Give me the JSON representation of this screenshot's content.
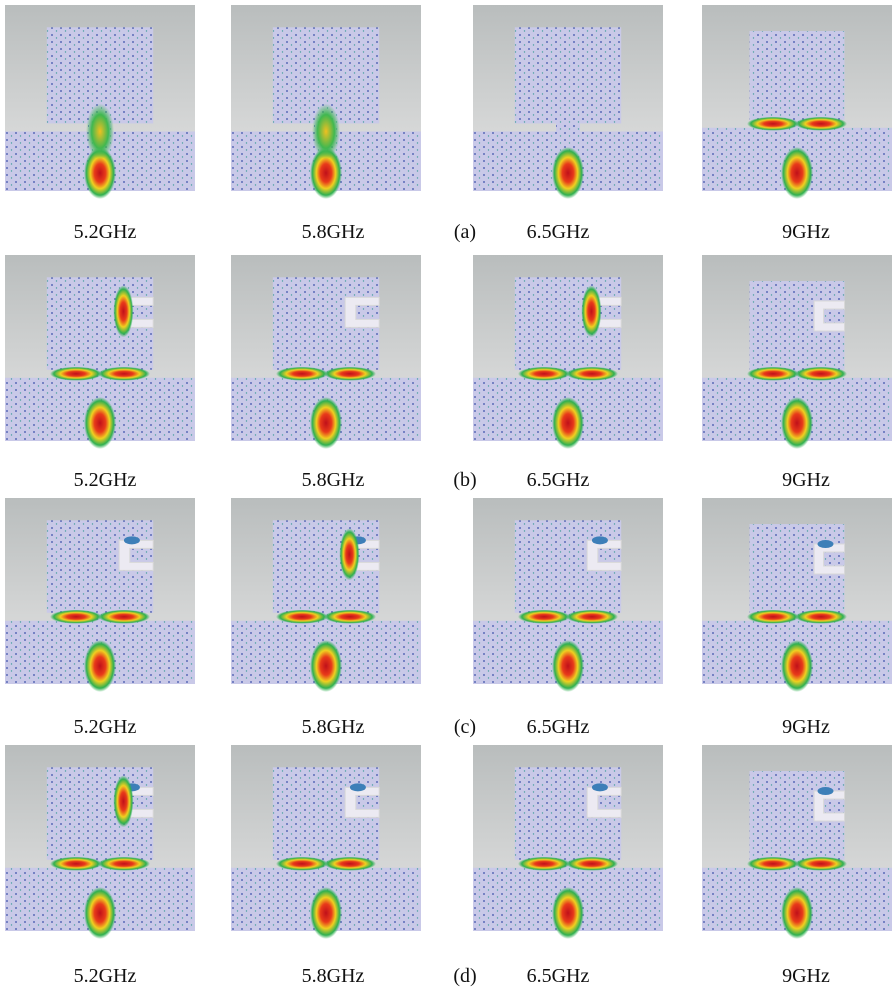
{
  "figure": {
    "rows": [
      {
        "label": "(a)",
        "panels": [
          "5.2GHz",
          "5.8GHz",
          "6.5GHz",
          "9GHz"
        ]
      },
      {
        "label": "(b)",
        "panels": [
          "5.2GHz",
          "5.8GHz",
          "6.5GHz",
          "9GHz"
        ]
      },
      {
        "label": "(c)",
        "panels": [
          "5.2GHz",
          "5.8GHz",
          "6.5GHz",
          "9GHz"
        ]
      },
      {
        "label": "(d)",
        "panels": [
          "5.2GHz",
          "5.8GHz",
          "6.5GHz",
          "9GHz"
        ]
      }
    ]
  }
}
